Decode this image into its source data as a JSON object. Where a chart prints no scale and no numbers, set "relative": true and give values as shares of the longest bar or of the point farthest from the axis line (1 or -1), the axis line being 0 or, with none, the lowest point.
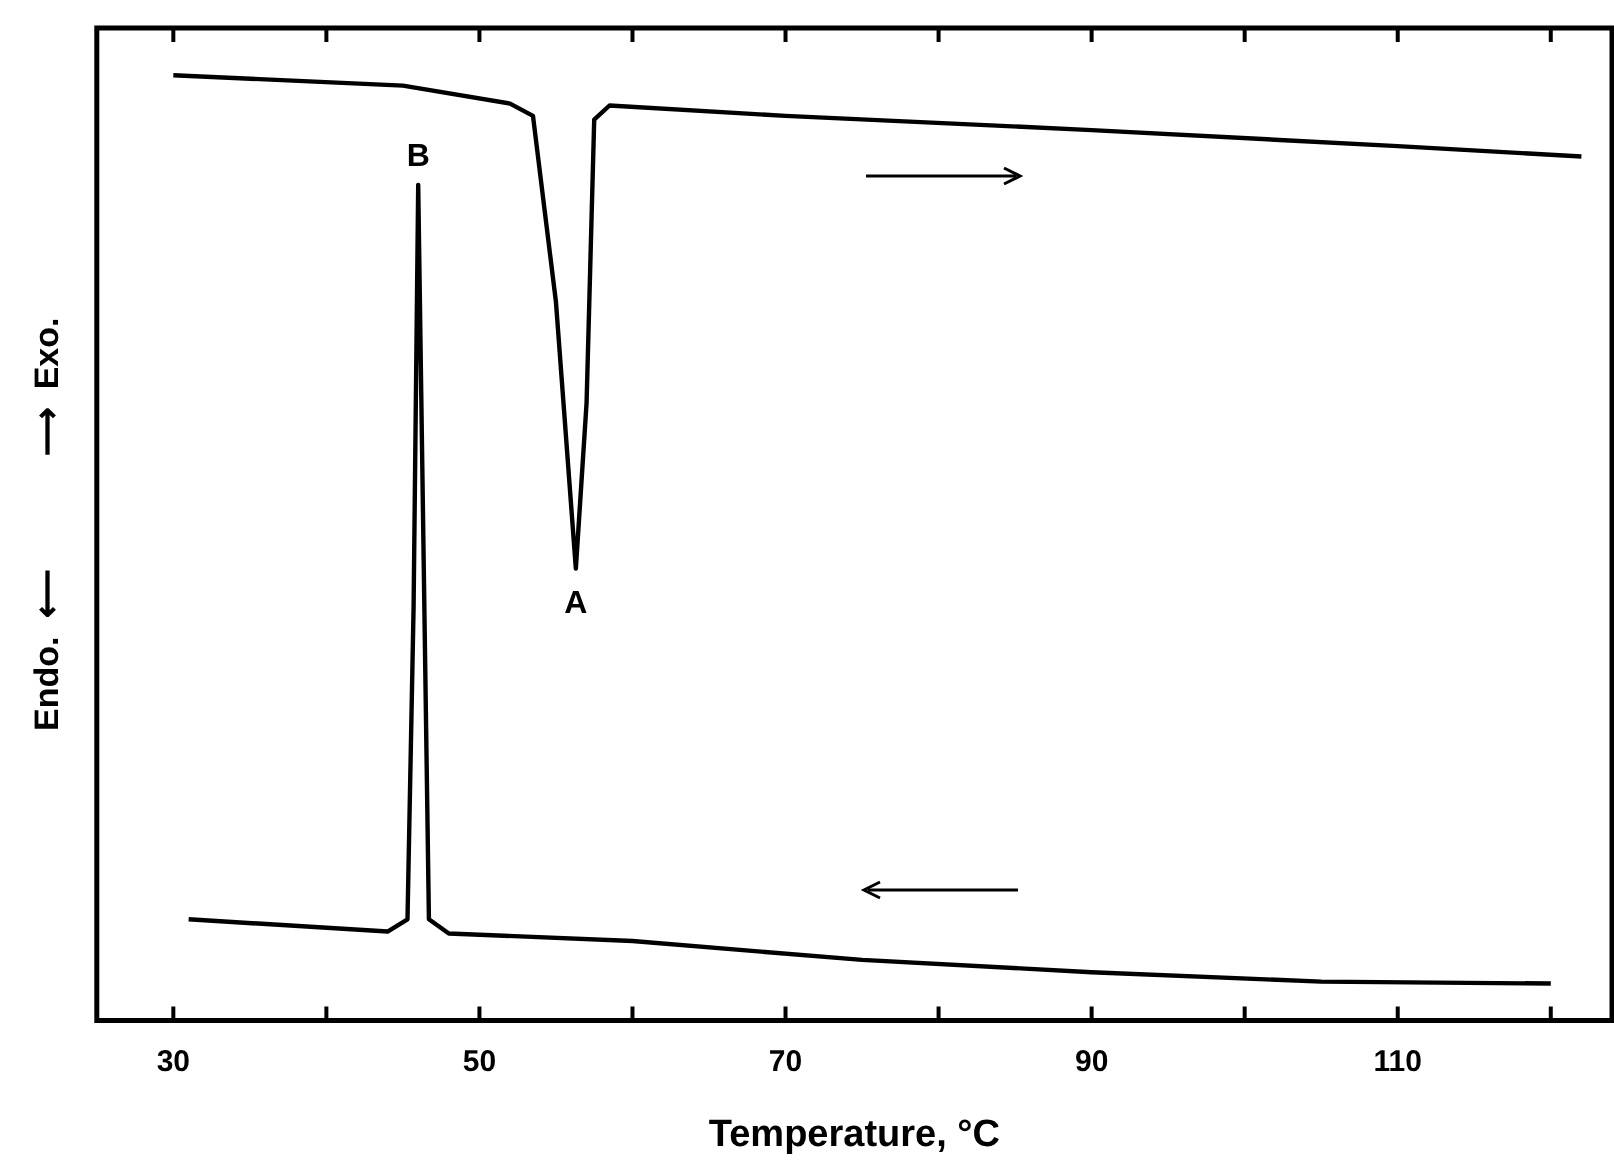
{
  "chart_data": {
    "type": "line",
    "relative": true,
    "xlabel": "Temperature, °C",
    "ylabel": "Endo.  ⟵            ⟶  Exo.",
    "xlim": [
      25,
      124
    ],
    "xticks": [
      30,
      {
        "value": 40,
        "label": null
      },
      50,
      {
        "value": 60,
        "label": null
      },
      70,
      {
        "value": 80,
        "label": null
      },
      90,
      {
        "value": 100,
        "label": null
      },
      110,
      {
        "value": 120,
        "label": null
      }
    ],
    "series": [
      {
        "color": "#000000",
        "x": [
          30,
          45,
          52,
          53.5,
          55,
          56.3,
          57,
          57.5,
          58.5,
          70,
          90,
          110,
          122
        ],
        "values": [
          1.0,
          0.989,
          0.97,
          0.957,
          0.76,
          0.478,
          0.653,
          0.953,
          0.968,
          0.957,
          0.942,
          0.925,
          0.914
        ]
      },
      {
        "color": "#000000",
        "x": [
          31,
          44,
          45.3,
          45.7,
          46,
          46.4,
          46.7,
          48,
          60,
          75,
          90,
          105,
          120
        ],
        "values": [
          0.107,
          0.094,
          0.107,
          0.439,
          0.884,
          0.439,
          0.107,
          0.092,
          0.084,
          0.064,
          0.051,
          0.041,
          0.039
        ]
      }
    ],
    "annotations": [
      {
        "text": "A",
        "x": 56.3,
        "y": 0.478
      },
      {
        "text": "B",
        "x": 46,
        "y": 0.884
      }
    ],
    "grid": false,
    "legend": false,
    "marker": "none",
    "line_style": "solid"
  }
}
